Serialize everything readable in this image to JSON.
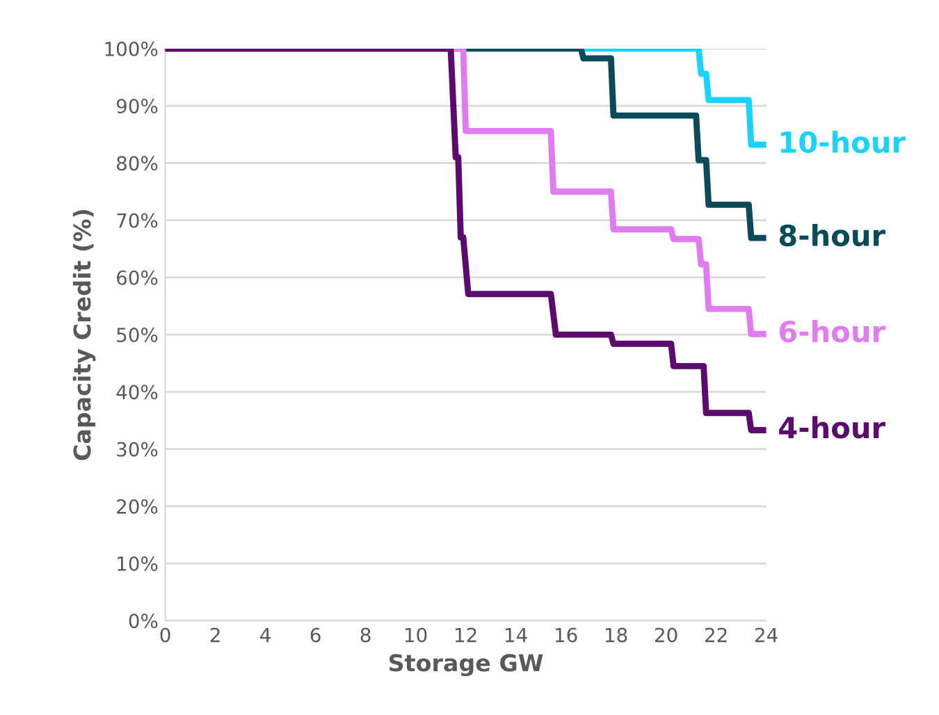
{
  "chart_data": {
    "type": "line",
    "xlabel": "Storage GW",
    "ylabel": "Capacity Credit (%)",
    "xlim": [
      0,
      24
    ],
    "xticks": [
      0,
      2,
      4,
      6,
      8,
      10,
      12,
      14,
      16,
      18,
      20,
      22,
      24
    ],
    "ylim": [
      0,
      100
    ],
    "yticks": [
      {
        "value": 0,
        "label": "0%"
      },
      {
        "value": 10,
        "label": "10%"
      },
      {
        "value": 20,
        "label": "20%"
      },
      {
        "value": 30,
        "label": "30%"
      },
      {
        "value": 40,
        "label": "40%"
      },
      {
        "value": 50,
        "label": "50%"
      },
      {
        "value": 60,
        "label": "60%"
      },
      {
        "value": 70,
        "label": "70%"
      },
      {
        "value": 80,
        "label": "80%"
      },
      {
        "value": 90,
        "label": "90%"
      },
      {
        "value": 100,
        "label": "100%"
      }
    ],
    "grid": "y",
    "legend": false,
    "marker": "none",
    "line_style": "solid",
    "series": [
      {
        "name": "10-hour",
        "color": "#1ad3fb",
        "x": [
          16.7,
          21.3,
          21.4,
          21.6,
          21.7,
          23.3,
          23.4,
          24
        ],
        "values": [
          100,
          100,
          95.6,
          95.6,
          91,
          91,
          83.2,
          83.2
        ]
      },
      {
        "name": "8-hour",
        "color": "#0b4a5a",
        "x": [
          0,
          16.6,
          16.7,
          17.8,
          17.9,
          21.2,
          21.3,
          21.6,
          21.7,
          23.3,
          23.4,
          24
        ],
        "values": [
          100,
          100,
          98.3,
          98.3,
          88.3,
          88.3,
          80.5,
          80.5,
          72.7,
          72.7,
          66.9,
          66.9
        ]
      },
      {
        "name": "6-hour",
        "color": "#e07cf0",
        "x": [
          0,
          11.9,
          12.0,
          15.4,
          15.5,
          17.8,
          17.9,
          20.2,
          20.3,
          21.3,
          21.4,
          21.6,
          21.7,
          23.3,
          23.4,
          24
        ],
        "values": [
          100,
          100,
          85.6,
          85.6,
          75,
          75,
          68.4,
          68.4,
          66.7,
          66.7,
          62.3,
          62.3,
          54.5,
          54.5,
          50.1,
          50.1
        ]
      },
      {
        "name": "4-hour",
        "color": "#5c0a6e",
        "x": [
          0,
          11.4,
          11.6,
          11.7,
          11.8,
          11.9,
          12.1,
          15.4,
          15.6,
          17.8,
          17.9,
          20.2,
          20.3,
          21.5,
          21.6,
          23.3,
          23.4,
          24
        ],
        "values": [
          100,
          100,
          81,
          81,
          67,
          67,
          57.1,
          57.1,
          50,
          50,
          48.4,
          48.4,
          44.5,
          44.5,
          36.3,
          36.3,
          33.3,
          33.3
        ]
      }
    ]
  }
}
